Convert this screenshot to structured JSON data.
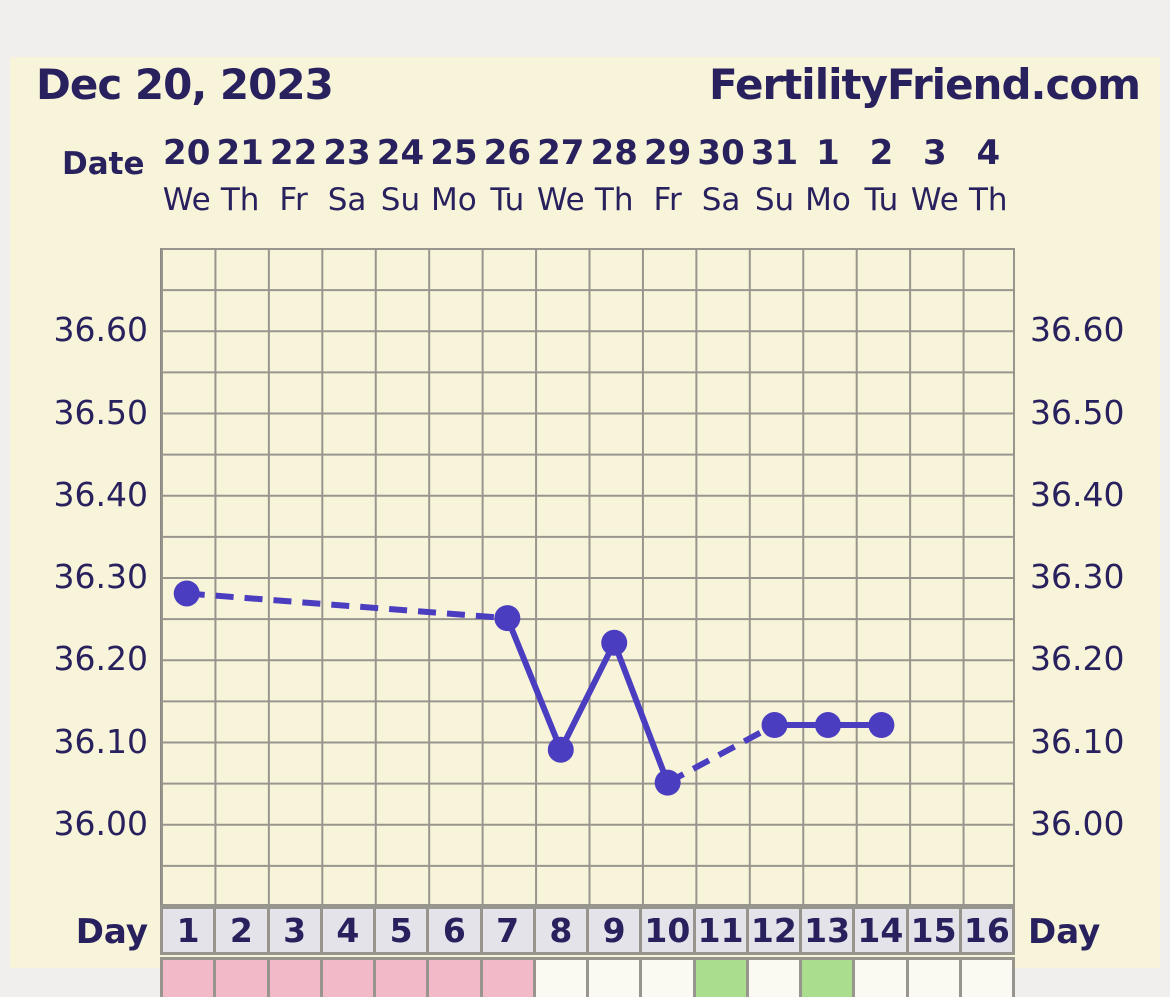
{
  "header": {
    "chart_date": "Dec 20, 2023",
    "brand": "FertilityFriend.com"
  },
  "date_axis": {
    "label": "Date",
    "dates": [
      "20",
      "21",
      "22",
      "23",
      "24",
      "25",
      "26",
      "27",
      "28",
      "29",
      "30",
      "31",
      "1",
      "2",
      "3",
      "4"
    ],
    "weekdays": [
      "We",
      "Th",
      "Fr",
      "Sa",
      "Su",
      "Mo",
      "Tu",
      "We",
      "Th",
      "Fr",
      "Sa",
      "Su",
      "Mo",
      "Tu",
      "We",
      "Th"
    ]
  },
  "day_axis": {
    "label_left": "Day",
    "label_right": "Day",
    "days": [
      "1",
      "2",
      "3",
      "4",
      "5",
      "6",
      "7",
      "8",
      "9",
      "10",
      "11",
      "12",
      "13",
      "14",
      "15",
      "16"
    ]
  },
  "temp_axis": {
    "tick_labels": [
      "36.60",
      "36.50",
      "36.40",
      "36.30",
      "36.20",
      "36.10",
      "36.00"
    ]
  },
  "chart_data": {
    "type": "line",
    "title": "Dec 20, 2023",
    "x_label": "Day",
    "x": [
      1,
      2,
      3,
      4,
      5,
      6,
      7,
      8,
      9,
      10,
      11,
      12,
      13,
      14,
      15,
      16
    ],
    "series": [
      {
        "name": "temperature",
        "values": [
          36.28,
          null,
          null,
          null,
          null,
          null,
          36.25,
          36.09,
          36.22,
          36.05,
          null,
          36.12,
          36.12,
          36.12,
          null,
          null
        ]
      }
    ],
    "ylim": [
      35.9,
      36.7
    ],
    "y_minor_step": 0.05,
    "y_label_step": 0.1,
    "grid": true,
    "marker": "circle",
    "gap_segments": "dashed",
    "day_phase_row": [
      "menses",
      "menses",
      "menses",
      "menses",
      "menses",
      "menses",
      "menses",
      "none",
      "none",
      "none",
      "fertile",
      "none",
      "fertile",
      "none",
      "none",
      "none"
    ]
  },
  "colors": {
    "line": "#4b3dc0",
    "text": "#28215e",
    "grid_line": "#98958e",
    "panel_bg": "#f7f4da",
    "outer_bg": "#f0efee",
    "day_cell_bg": "#e4e3ea",
    "menses": "#f2bac8",
    "fertile": "#aadd8e",
    "none": "#fbfaf2"
  }
}
